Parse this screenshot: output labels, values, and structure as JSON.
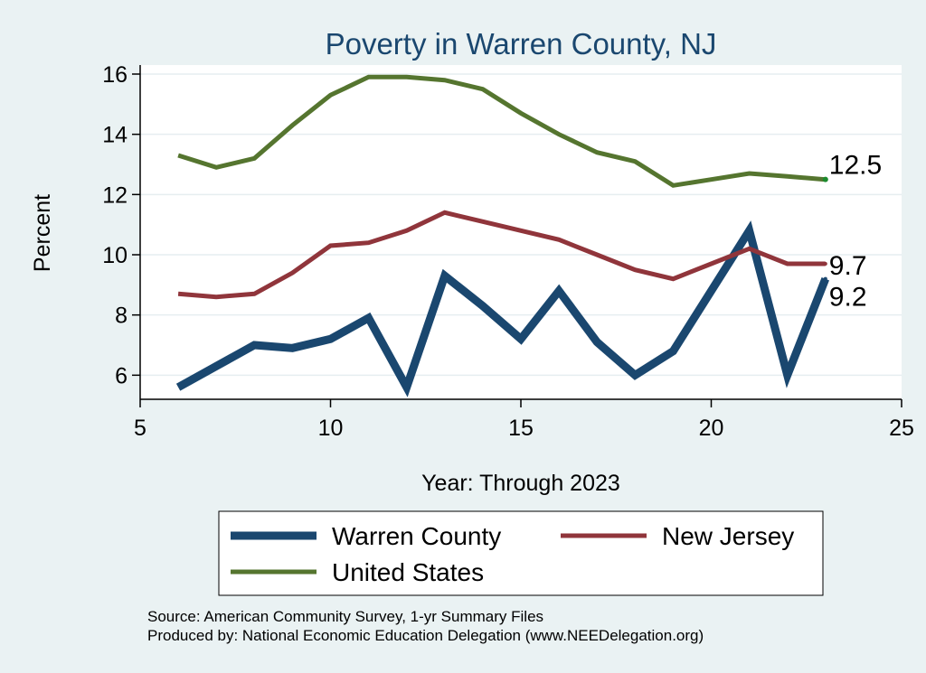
{
  "chart_data": {
    "type": "line",
    "title": "Poverty in Warren County, NJ",
    "xlabel": "Year: Through 2023",
    "ylabel": "Percent",
    "xlim": [
      5,
      25
    ],
    "ylim": [
      5.2,
      16.3
    ],
    "xticks": [
      5,
      10,
      15,
      20,
      25
    ],
    "yticks": [
      6,
      8,
      10,
      12,
      14,
      16
    ],
    "grid": true,
    "legend_position": "bottom",
    "x": [
      6,
      7,
      8,
      9,
      10,
      11,
      12,
      13,
      14,
      15,
      16,
      17,
      18,
      19,
      20,
      21,
      22,
      23
    ],
    "series": [
      {
        "name": "Warren County",
        "color": "#1a476f",
        "values": [
          5.6,
          6.3,
          7.0,
          6.9,
          7.2,
          7.9,
          5.6,
          9.3,
          8.3,
          7.2,
          8.8,
          7.1,
          6.0,
          6.8,
          8.8,
          10.8,
          6.0,
          9.2
        ],
        "end_label": "9.2"
      },
      {
        "name": "New Jersey",
        "color": "#90353b",
        "values": [
          8.7,
          8.6,
          8.7,
          9.4,
          10.3,
          10.4,
          10.8,
          11.4,
          11.1,
          10.8,
          10.5,
          10.0,
          9.5,
          9.2,
          9.7,
          10.2,
          9.7,
          9.7
        ],
        "end_label": "9.7"
      },
      {
        "name": "United States",
        "color": "#55752f",
        "values": [
          13.3,
          12.9,
          13.2,
          14.3,
          15.3,
          15.9,
          15.9,
          15.8,
          15.5,
          14.7,
          14.0,
          13.4,
          13.1,
          12.3,
          12.5,
          12.7,
          12.6,
          12.5
        ],
        "end_label": "12.5"
      }
    ],
    "notes": [
      "Source: American Community Survey, 1-yr Summary Files",
      "Produced by: National Economic Education Delegation (www.NEEDelegation.org)"
    ]
  }
}
